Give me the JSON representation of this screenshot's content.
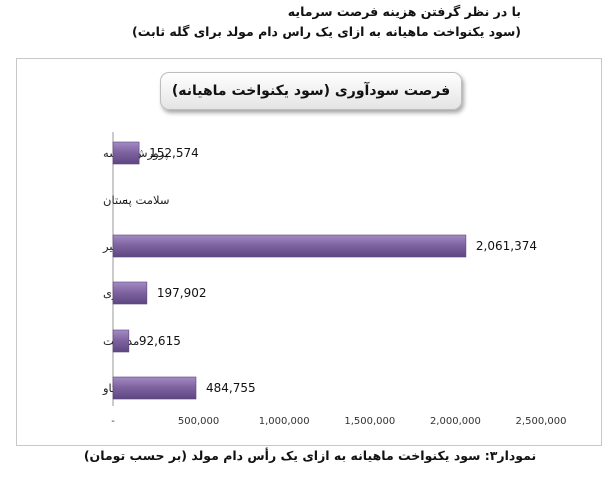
{
  "header": {
    "line1": "با در نظر گرفتن هزینه فرصت سرمایه",
    "line2": "(سود یکنواخت ماهیانه به ازای یک راس دام مولد برای گله ثابت)"
  },
  "caption": "نمودار۳: سود یکنواخت ماهیانه به ازای یک رأس دام مولد (بر حسب تومان)",
  "chart_data": {
    "type": "bar",
    "orientation": "horizontal",
    "title": "فرصت سودآوری (سود یکنواخت ماهیانه)",
    "categories": [
      "پرورش تلیسه",
      "سلامت پستان",
      "تولید شیر",
      "ماندگاری",
      "مدیریت",
      "تولیدمثل گاو"
    ],
    "values": [
      152574,
      0,
      2061374,
      197902,
      92615,
      484755
    ],
    "value_labels": [
      "152,574",
      "-",
      "2,061,374",
      "197,902",
      "92,615",
      "484,755"
    ],
    "xlim": [
      0,
      2500000
    ],
    "x_ticks": [
      0,
      500000,
      1000000,
      1500000,
      2000000,
      2500000
    ],
    "x_tick_labels": [
      "-",
      "500,000",
      "1,000,000",
      "1,500,000",
      "2,000,000",
      "2,500,000"
    ],
    "bar_color": "#8064a2",
    "grid": false,
    "legend": "none"
  }
}
